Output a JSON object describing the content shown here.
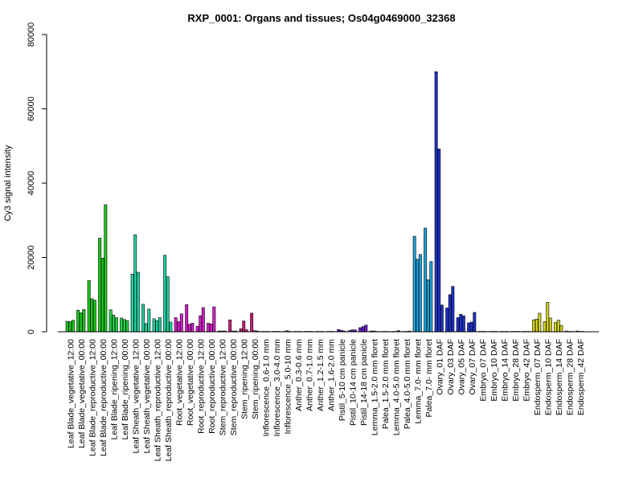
{
  "chart_data": {
    "type": "bar",
    "title": "RXP_0001: Organs and tissues; Os04g0469000_32368",
    "xlabel": "",
    "ylabel": "Cy3 signal intensity",
    "ylim": [
      0,
      80000
    ],
    "yticks": [
      0,
      20000,
      40000,
      60000,
      80000
    ],
    "grid": false,
    "legend": "none",
    "groups": [
      {
        "label": "Leaf Blade_vegetative_12:00",
        "color": "#1ec81e",
        "values": [
          2800,
          2700,
          3100
        ]
      },
      {
        "label": "Leaf Blade_vegetative_00:00",
        "color": "#1ec81e",
        "values": [
          5800,
          5100,
          6000
        ]
      },
      {
        "label": "Leaf Blade_reproductive_12:00",
        "color": "#1ec81e",
        "values": [
          13800,
          8900,
          8500
        ]
      },
      {
        "label": "Leaf Blade_reproductive_00:00",
        "color": "#1ec81e",
        "values": [
          25200,
          19800,
          34200
        ]
      },
      {
        "label": "Leaf Blade_ripening_12:00",
        "color": "#22d246",
        "values": [
          5900,
          4500,
          3800
        ]
      },
      {
        "label": "Leaf Blade_ripening_00:00",
        "color": "#22d246",
        "values": [
          3700,
          3300,
          3000
        ]
      },
      {
        "label": "Leaf Sheath_vegetative_12:00",
        "color": "#22d2a0",
        "values": [
          15500,
          26100,
          16000
        ]
      },
      {
        "label": "Leaf Sheath_vegetative_00:00",
        "color": "#22d2a0",
        "values": [
          7400,
          2200,
          6100
        ]
      },
      {
        "label": "Leaf Sheath_reproductive_12:00",
        "color": "#22d2a0",
        "values": [
          3500,
          3000,
          3800
        ]
      },
      {
        "label": "Leaf Sheath_reproductive_00:00",
        "color": "#22d2a0",
        "values": [
          20600,
          14800,
          2600
        ]
      },
      {
        "label": "Root_vegetative_12:00",
        "color": "#d21ec8",
        "values": [
          3800,
          2700,
          4800
        ]
      },
      {
        "label": "Root_vegetative_00:00",
        "color": "#d21ec8",
        "values": [
          7300,
          2000,
          2300
        ]
      },
      {
        "label": "Root_reproductive_12:00",
        "color": "#d21ec8",
        "values": [
          1500,
          4300,
          6500
        ]
      },
      {
        "label": "Root_reproductive_00:00",
        "color": "#d21ec8",
        "values": [
          2300,
          2100,
          6700
        ]
      },
      {
        "label": "Stem_reproductive_12:00",
        "color": "#c81e78",
        "values": [
          200,
          200,
          200
        ]
      },
      {
        "label": "Stem_reproductive_00:00",
        "color": "#c81e78",
        "values": [
          3200,
          200,
          200
        ]
      },
      {
        "label": "Stem_ripening_12:00",
        "color": "#c81e78",
        "values": [
          800,
          2900,
          500
        ]
      },
      {
        "label": "Stem_ripening_00:00",
        "color": "#c81e78",
        "values": [
          5000,
          300,
          200
        ]
      },
      {
        "label": "Inflorescence_0.6-1.0 mm",
        "color": "#8c1e8c",
        "values": [
          100,
          100,
          100
        ]
      },
      {
        "label": "Inflorescence_3.0-4.0 mm",
        "color": "#8c1e8c",
        "values": [
          100,
          100,
          100
        ]
      },
      {
        "label": "Inflorescence_5.0-10 mm",
        "color": "#8c1e8c",
        "values": [
          100,
          300,
          100
        ]
      },
      {
        "label": "Anther_0.3-0.6 mm",
        "color": "#8c1e8c",
        "values": [
          100,
          100,
          100
        ]
      },
      {
        "label": "Anther_0.7-1.0 mm",
        "color": "#8c1e8c",
        "values": [
          100,
          100,
          100
        ]
      },
      {
        "label": "Anther_1.2-1.5 mm",
        "color": "#8c1e8c",
        "values": [
          100,
          100,
          100
        ]
      },
      {
        "label": "Anther_1.6-2.0 mm",
        "color": "#8c1e8c",
        "values": [
          100,
          100,
          100
        ]
      },
      {
        "label": "Pistil_5-10 cm panicle",
        "color": "#6e1ecd",
        "values": [
          600,
          400,
          200
        ]
      },
      {
        "label": "Pistil_10-14 cm panicle",
        "color": "#6e1ecd",
        "values": [
          300,
          500,
          500
        ]
      },
      {
        "label": "Pistil_14-18 cm panicle",
        "color": "#6e1ecd",
        "values": [
          1100,
          1400,
          1800
        ]
      },
      {
        "label": "Lemma_1.5-2.0 mm floret",
        "color": "#1e46c8",
        "values": [
          200,
          200,
          100
        ]
      },
      {
        "label": "Palea_1.5-2.0 mm floret",
        "color": "#1e46c8",
        "values": [
          100,
          100,
          100
        ]
      },
      {
        "label": "Lemma_4.0-5.0 mm floret",
        "color": "#1e46c8",
        "values": [
          100,
          100,
          300
        ]
      },
      {
        "label": "Palea_4.0-5.0 mm floret",
        "color": "#1e46c8",
        "values": [
          100,
          100,
          200
        ]
      },
      {
        "label": "Lemma_7.0- mm floret",
        "color": "#1ea0dc",
        "values": [
          25700,
          19500,
          20800
        ]
      },
      {
        "label": "Palea_7.0- mm floret",
        "color": "#1ea0dc",
        "values": [
          27900,
          14000,
          18900
        ]
      },
      {
        "label": "Ovary_01 DAF",
        "color": "#1e32c8",
        "values": [
          70000,
          49200,
          7200
        ]
      },
      {
        "label": "Ovary_03 DAF",
        "color": "#1e32c8",
        "values": [
          6400,
          10000,
          12200
        ]
      },
      {
        "label": "Ovary_05 DAF",
        "color": "#1e32c8",
        "values": [
          3800,
          4700,
          4300
        ]
      },
      {
        "label": "Ovary_07 DAF",
        "color": "#1e32c8",
        "values": [
          2400,
          2600,
          5200
        ]
      },
      {
        "label": "Embryo_07 DAF",
        "color": "#8c8c14",
        "values": [
          100,
          100,
          100
        ]
      },
      {
        "label": "Embryo_10 DAF",
        "color": "#8c8c14",
        "values": [
          100,
          100,
          100
        ]
      },
      {
        "label": "Embryo_14 DAF",
        "color": "#8c8c14",
        "values": [
          100,
          100,
          100
        ]
      },
      {
        "label": "Embryo_28 DAF",
        "color": "#8c8c14",
        "values": [
          100,
          100,
          100
        ]
      },
      {
        "label": "Embryo_42 DAF",
        "color": "#8c8c14",
        "values": [
          100,
          100,
          100
        ]
      },
      {
        "label": "Endosperm_07 DAF",
        "color": "#d2d21e",
        "values": [
          3200,
          3400,
          5000
        ]
      },
      {
        "label": "Endosperm_10 DAF",
        "color": "#d2d21e",
        "values": [
          2700,
          7900,
          3700
        ]
      },
      {
        "label": "Endosperm_14 DAF",
        "color": "#d2d21e",
        "values": [
          2500,
          3100,
          1700
        ]
      },
      {
        "label": "Endosperm_28 DAF",
        "color": "#d2d21e",
        "values": [
          200,
          100,
          100
        ]
      },
      {
        "label": "Endosperm_42 DAF",
        "color": "#d2d21e",
        "values": [
          200,
          100,
          100
        ]
      }
    ]
  }
}
